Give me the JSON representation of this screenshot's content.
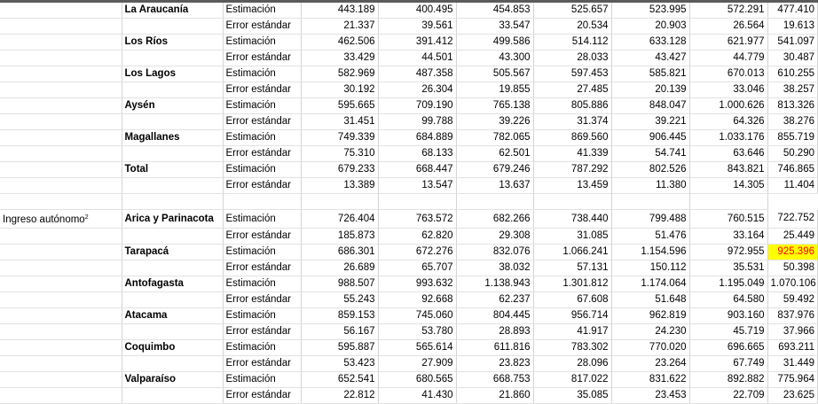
{
  "section1_rows": [
    {
      "region": "La Araucanía",
      "stat": "Estimación",
      "values": [
        "443.189",
        "400.495",
        "454.853",
        "525.657",
        "523.995",
        "572.291",
        "477.410"
      ]
    },
    {
      "region": "",
      "stat": "Error estándar",
      "values": [
        "21.337",
        "39.561",
        "33.547",
        "20.534",
        "20.903",
        "26.564",
        "19.613"
      ]
    },
    {
      "region": "Los Ríos",
      "stat": "Estimación",
      "values": [
        "462.506",
        "391.412",
        "499.586",
        "514.112",
        "633.128",
        "621.977",
        "541.097"
      ]
    },
    {
      "region": "",
      "stat": "Error estándar",
      "values": [
        "33.429",
        "44.501",
        "43.300",
        "28.033",
        "43.427",
        "44.779",
        "30.487"
      ]
    },
    {
      "region": "Los Lagos",
      "stat": "Estimación",
      "values": [
        "582.969",
        "487.358",
        "505.567",
        "597.453",
        "585.821",
        "670.013",
        "610.255"
      ]
    },
    {
      "region": "",
      "stat": "Error estándar",
      "values": [
        "30.192",
        "26.304",
        "19.855",
        "27.485",
        "20.139",
        "33.046",
        "38.257"
      ]
    },
    {
      "region": "Aysén",
      "stat": "Estimación",
      "values": [
        "595.665",
        "709.190",
        "765.138",
        "805.886",
        "848.047",
        "1.000.626",
        "813.326"
      ]
    },
    {
      "region": "",
      "stat": "Error estándar",
      "values": [
        "31.451",
        "99.788",
        "39.226",
        "31.374",
        "39.221",
        "64.326",
        "38.276"
      ]
    },
    {
      "region": "Magallanes",
      "stat": "Estimación",
      "values": [
        "749.339",
        "684.889",
        "782.065",
        "869.560",
        "906.445",
        "1.033.176",
        "855.719"
      ]
    },
    {
      "region": "",
      "stat": "Error estándar",
      "values": [
        "75.310",
        "68.133",
        "62.501",
        "41.339",
        "54.741",
        "63.646",
        "50.290"
      ]
    },
    {
      "region": "Total",
      "stat": "Estimación",
      "values": [
        "679.233",
        "668.447",
        "679.246",
        "787.292",
        "802.526",
        "843.821",
        "746.865"
      ]
    },
    {
      "region": "",
      "stat": "Error estándar",
      "values": [
        "13.389",
        "13.547",
        "13.637",
        "13.459",
        "11.380",
        "14.305",
        "11.404"
      ]
    }
  ],
  "section2_category": "Ingreso autónomo",
  "section2_category_sup": "2",
  "section2_rows": [
    {
      "region": "Arica y Parinacota",
      "stat": "Estimación",
      "values": [
        "726.404",
        "763.572",
        "682.266",
        "738.440",
        "799.488",
        "760.515",
        "722.752"
      ]
    },
    {
      "region": "",
      "stat": "Error estándar",
      "values": [
        "185.873",
        "62.820",
        "29.308",
        "31.085",
        "51.476",
        "33.164",
        "25.449"
      ]
    },
    {
      "region": "Tarapacá",
      "stat": "Estimación",
      "values": [
        "686.301",
        "672.276",
        "832.076",
        "1.066.241",
        "1.154.596",
        "972.955",
        "925.396"
      ]
    },
    {
      "region": "",
      "stat": "Error estándar",
      "values": [
        "26.689",
        "65.707",
        "38.032",
        "57.131",
        "150.112",
        "35.531",
        "50.398"
      ]
    },
    {
      "region": "Antofagasta",
      "stat": "Estimación",
      "values": [
        "988.507",
        "993.632",
        "1.138.943",
        "1.301.812",
        "1.174.064",
        "1.195.049",
        "1.070.106"
      ]
    },
    {
      "region": "",
      "stat": "Error estándar",
      "values": [
        "55.243",
        "92.668",
        "62.237",
        "67.608",
        "51.648",
        "64.580",
        "59.492"
      ]
    },
    {
      "region": "Atacama",
      "stat": "Estimación",
      "values": [
        "859.153",
        "745.060",
        "804.445",
        "956.714",
        "962.819",
        "903.160",
        "837.976"
      ]
    },
    {
      "region": "",
      "stat": "Error estándar",
      "values": [
        "56.167",
        "53.780",
        "28.893",
        "41.917",
        "24.230",
        "45.719",
        "37.966"
      ]
    },
    {
      "region": "Coquimbo",
      "stat": "Estimación",
      "values": [
        "595.887",
        "565.614",
        "611.816",
        "783.302",
        "770.020",
        "696.665",
        "693.211"
      ]
    },
    {
      "region": "",
      "stat": "Error estándar",
      "values": [
        "53.423",
        "27.909",
        "23.823",
        "28.096",
        "23.264",
        "67.749",
        "31.449"
      ]
    },
    {
      "region": "Valparaíso",
      "stat": "Estimación",
      "values": [
        "652.541",
        "680.565",
        "668.753",
        "817.022",
        "831.622",
        "892.882",
        "775.964"
      ]
    },
    {
      "region": "",
      "stat": "Error estándar",
      "values": [
        "22.812",
        "41.430",
        "21.860",
        "35.085",
        "23.453",
        "22.709",
        "23.625"
      ]
    }
  ],
  "highlight": {
    "background": "#ffff00",
    "text": "#ff0000",
    "cell_value": "925.396"
  }
}
